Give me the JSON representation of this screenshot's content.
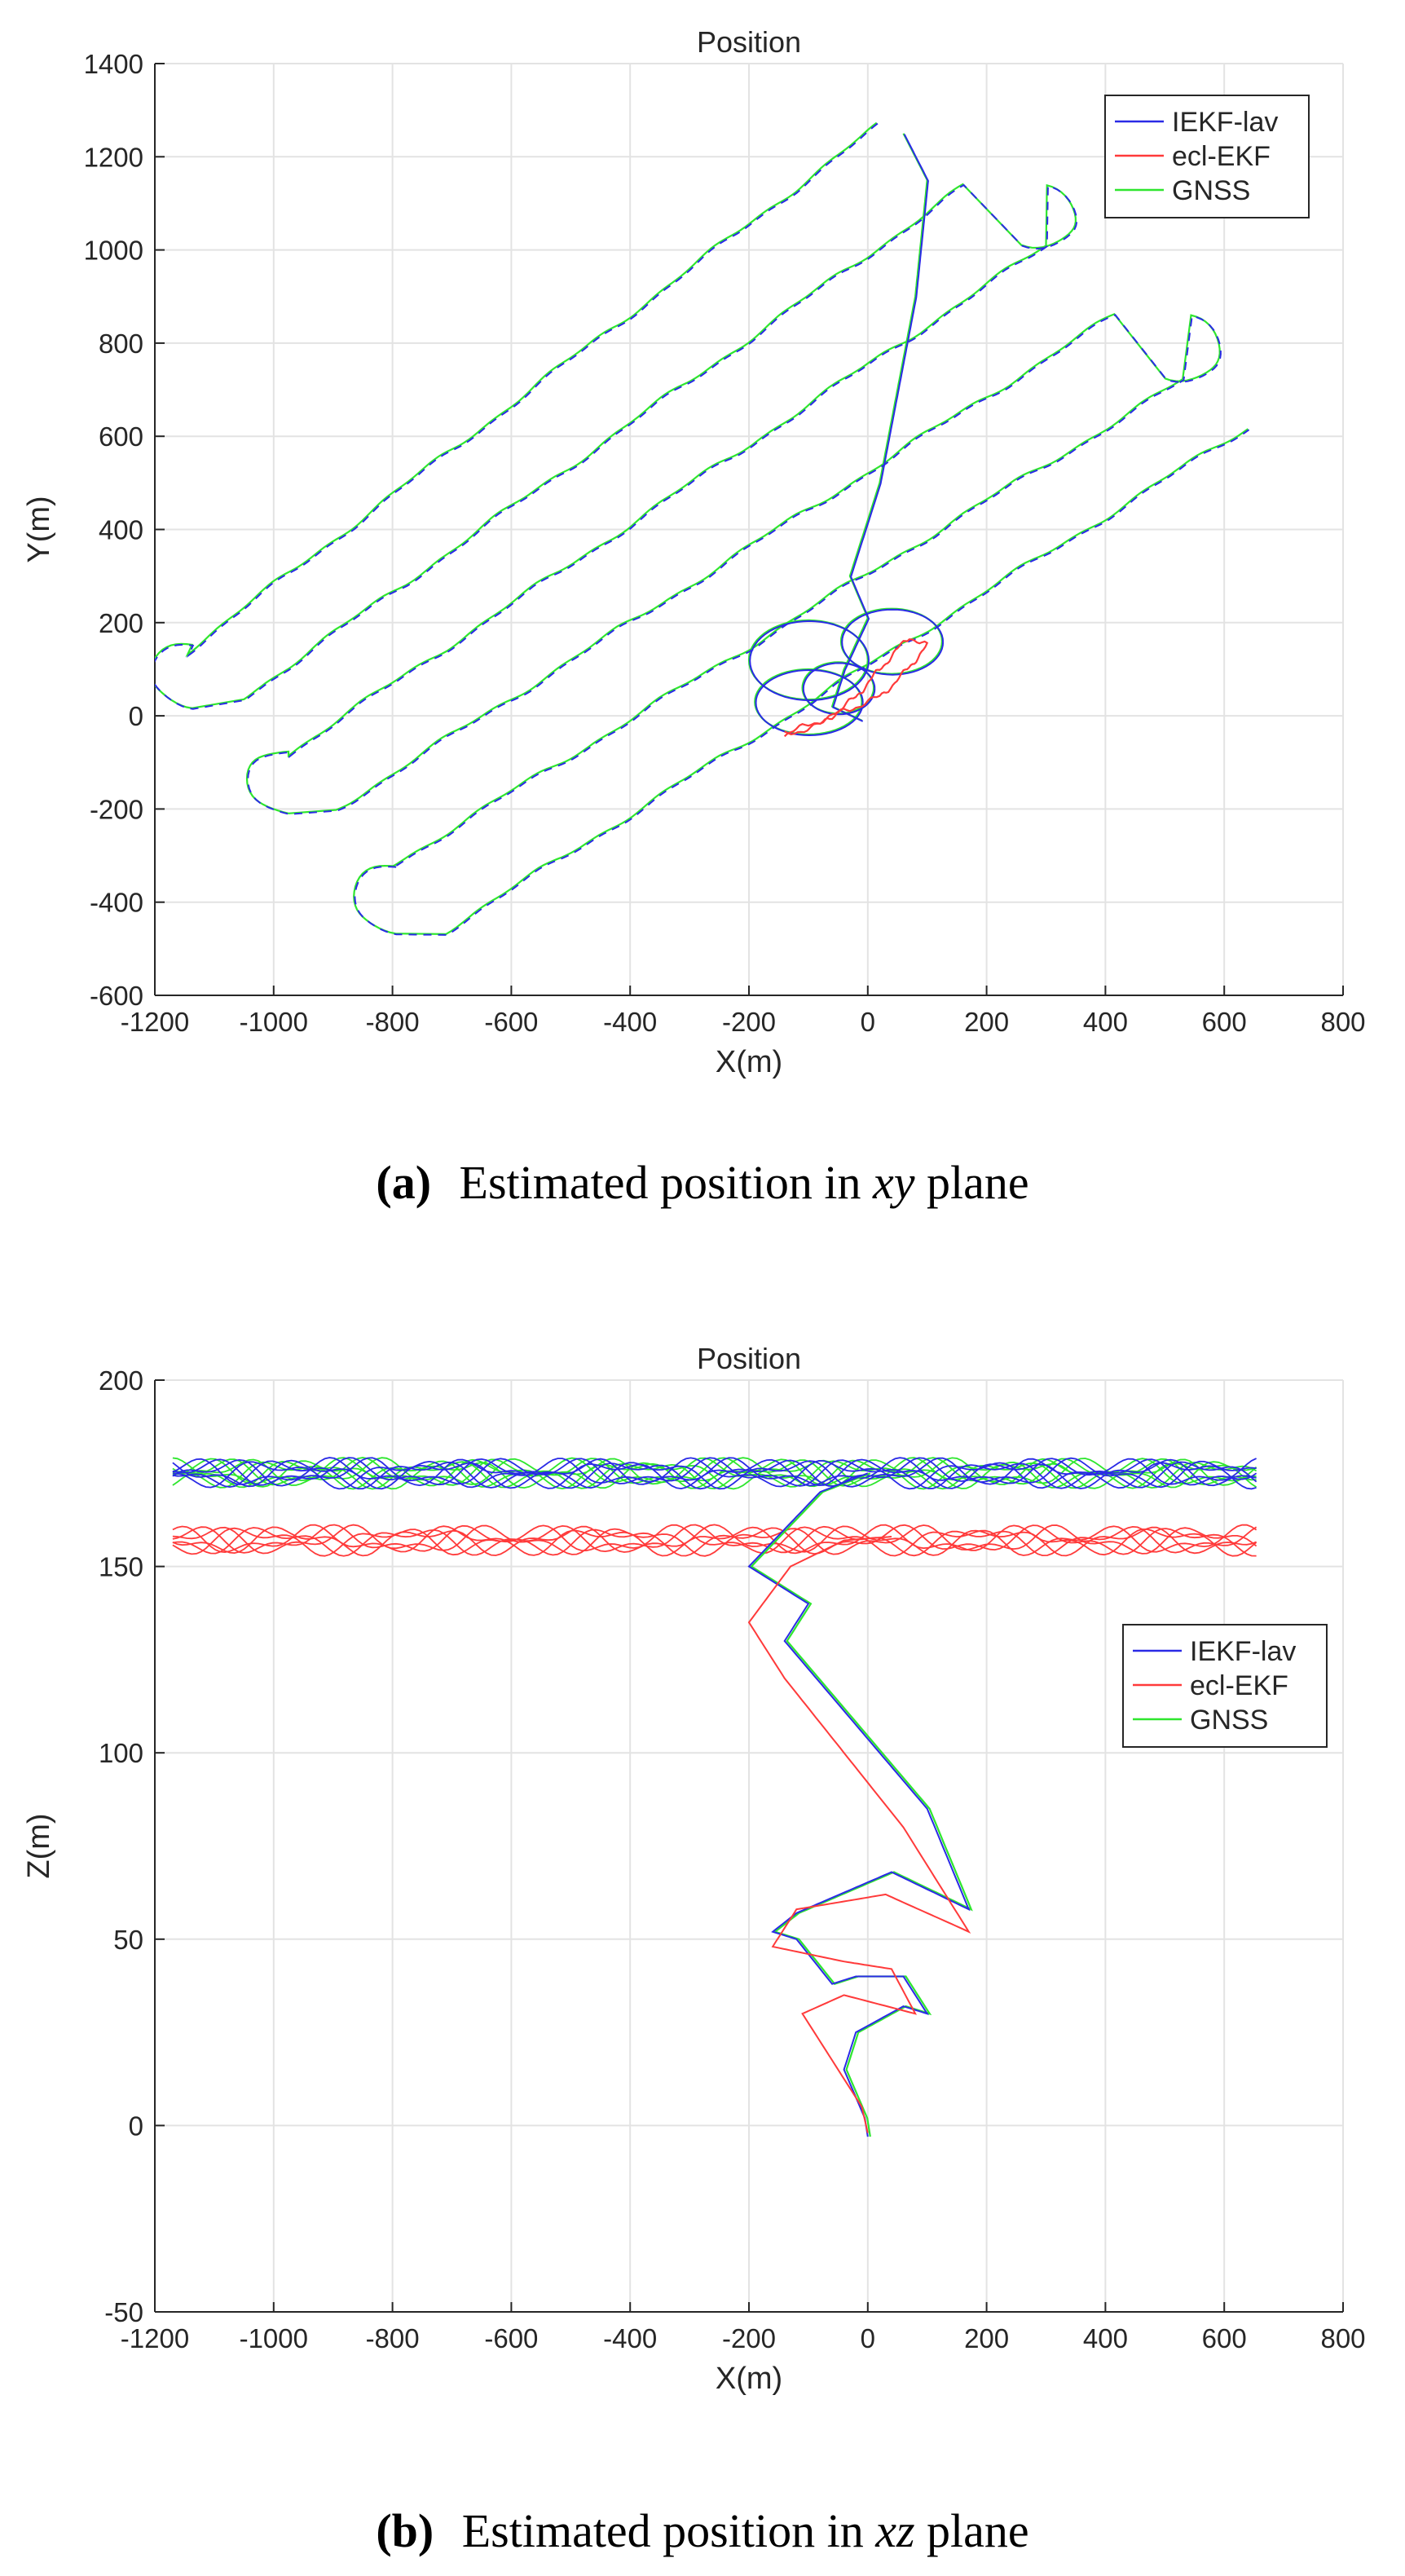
{
  "figure": {
    "caption_a": {
      "label": "(a)",
      "text": "Estimated position in ",
      "var": "xy",
      "tail": " plane"
    },
    "caption_b": {
      "label": "(b)",
      "text": "Estimated position in ",
      "var": "xz",
      "tail": " plane"
    }
  },
  "colors": {
    "iekf": "#2a2ae6",
    "ekf": "#ff3a3a",
    "gnss": "#2ee62e",
    "grid": "#e3e3e3",
    "axis": "#262626"
  },
  "chart_data": [
    {
      "id": "xy",
      "type": "line",
      "title": "Position",
      "xlabel": "X(m)",
      "ylabel": "Y(m)",
      "xlim": [
        -1200,
        800
      ],
      "ylim": [
        -600,
        1400
      ],
      "xticks": [
        -1200,
        -1000,
        -800,
        -600,
        -400,
        -200,
        0,
        200,
        400,
        600,
        800
      ],
      "yticks": [
        -600,
        -400,
        -200,
        0,
        200,
        400,
        600,
        800,
        1000,
        1200,
        1400
      ],
      "grid": true,
      "legend_position": "top-right",
      "series": [
        {
          "name": "IEKF-lav",
          "key": "iekf",
          "color": "#2a2ae6"
        },
        {
          "name": "ecl-EKF",
          "key": "ekf",
          "color": "#ff3a3a"
        },
        {
          "name": "GNSS",
          "key": "gnss",
          "color": "#2ee62e"
        }
      ],
      "lanes": [
        {
          "left": [
            -1145,
            140
          ],
          "right": [
            15,
            1265
          ]
        },
        {
          "left": [
            -1050,
            40
          ],
          "right": [
            160,
            1135
          ]
        },
        {
          "left": [
            -975,
            -80
          ],
          "right": [
            300,
            1010
          ]
        },
        {
          "left": [
            -895,
            -200
          ],
          "right": [
            415,
            860
          ]
        },
        {
          "left": [
            -800,
            -320
          ],
          "right": [
            530,
            720
          ]
        },
        {
          "left": [
            -710,
            -460
          ],
          "right": [
            640,
            620
          ]
        }
      ],
      "climb": [
        [
          -10,
          -10
        ],
        [
          -60,
          20
        ],
        [
          -40,
          100
        ],
        [
          0,
          210
        ],
        [
          -30,
          300
        ],
        [
          20,
          500
        ],
        [
          80,
          900
        ],
        [
          100,
          1150
        ],
        [
          60,
          1250
        ]
      ],
      "loops": [
        [
          -100,
          120,
          100,
          85
        ],
        [
          40,
          160,
          85,
          70
        ],
        [
          -100,
          30,
          90,
          70
        ],
        [
          -50,
          60,
          60,
          55
        ]
      ],
      "ekf_local": [
        [
          -140,
          -40
        ],
        [
          -100,
          -20
        ],
        [
          -60,
          0
        ],
        [
          -20,
          20
        ],
        [
          20,
          40
        ],
        [
          60,
          90
        ],
        [
          100,
          150
        ],
        [
          70,
          170
        ],
        [
          20,
          100
        ],
        [
          -20,
          40
        ],
        [
          -80,
          -20
        ],
        [
          -140,
          -40
        ]
      ]
    },
    {
      "id": "xz",
      "type": "line",
      "title": "Position",
      "xlabel": "X(m)",
      "ylabel": "Z(m)",
      "xlim": [
        -1200,
        800
      ],
      "ylim": [
        -50,
        200
      ],
      "xticks": [
        -1200,
        -1000,
        -800,
        -600,
        -400,
        -200,
        0,
        200,
        400,
        600,
        800
      ],
      "yticks": [
        -50,
        0,
        50,
        100,
        150,
        200
      ],
      "grid": true,
      "legend_position": "right",
      "series": [
        {
          "name": "IEKF-lav",
          "key": "iekf",
          "color": "#2a2ae6"
        },
        {
          "name": "ecl-EKF",
          "key": "ekf",
          "color": "#ff3a3a"
        },
        {
          "name": "GNSS",
          "key": "gnss",
          "color": "#2ee62e"
        }
      ],
      "cruise_altitude": {
        "iekf": 175,
        "gnss": 175,
        "ekf": 157
      },
      "cruise_xrange": [
        -1170,
        660
      ],
      "climb_iekf": [
        [
          0,
          -3
        ],
        [
          -5,
          2
        ],
        [
          -40,
          15
        ],
        [
          -20,
          25
        ],
        [
          60,
          32
        ],
        [
          100,
          30
        ],
        [
          60,
          40
        ],
        [
          -20,
          40
        ],
        [
          -60,
          38
        ],
        [
          -120,
          50
        ],
        [
          -160,
          52
        ],
        [
          -120,
          57
        ],
        [
          40,
          68
        ],
        [
          170,
          58
        ],
        [
          100,
          85
        ],
        [
          -60,
          115
        ],
        [
          -140,
          130
        ],
        [
          -100,
          140
        ],
        [
          -200,
          150
        ],
        [
          -80,
          170
        ],
        [
          0,
          175
        ]
      ],
      "climb_ekf": [
        [
          0,
          -2
        ],
        [
          -10,
          5
        ],
        [
          -110,
          30
        ],
        [
          -40,
          35
        ],
        [
          80,
          30
        ],
        [
          40,
          42
        ],
        [
          -40,
          44
        ],
        [
          -160,
          48
        ],
        [
          -120,
          58
        ],
        [
          30,
          62
        ],
        [
          170,
          52
        ],
        [
          60,
          80
        ],
        [
          -140,
          120
        ],
        [
          -200,
          135
        ],
        [
          -130,
          150
        ],
        [
          -40,
          157
        ],
        [
          40,
          158
        ]
      ]
    }
  ]
}
